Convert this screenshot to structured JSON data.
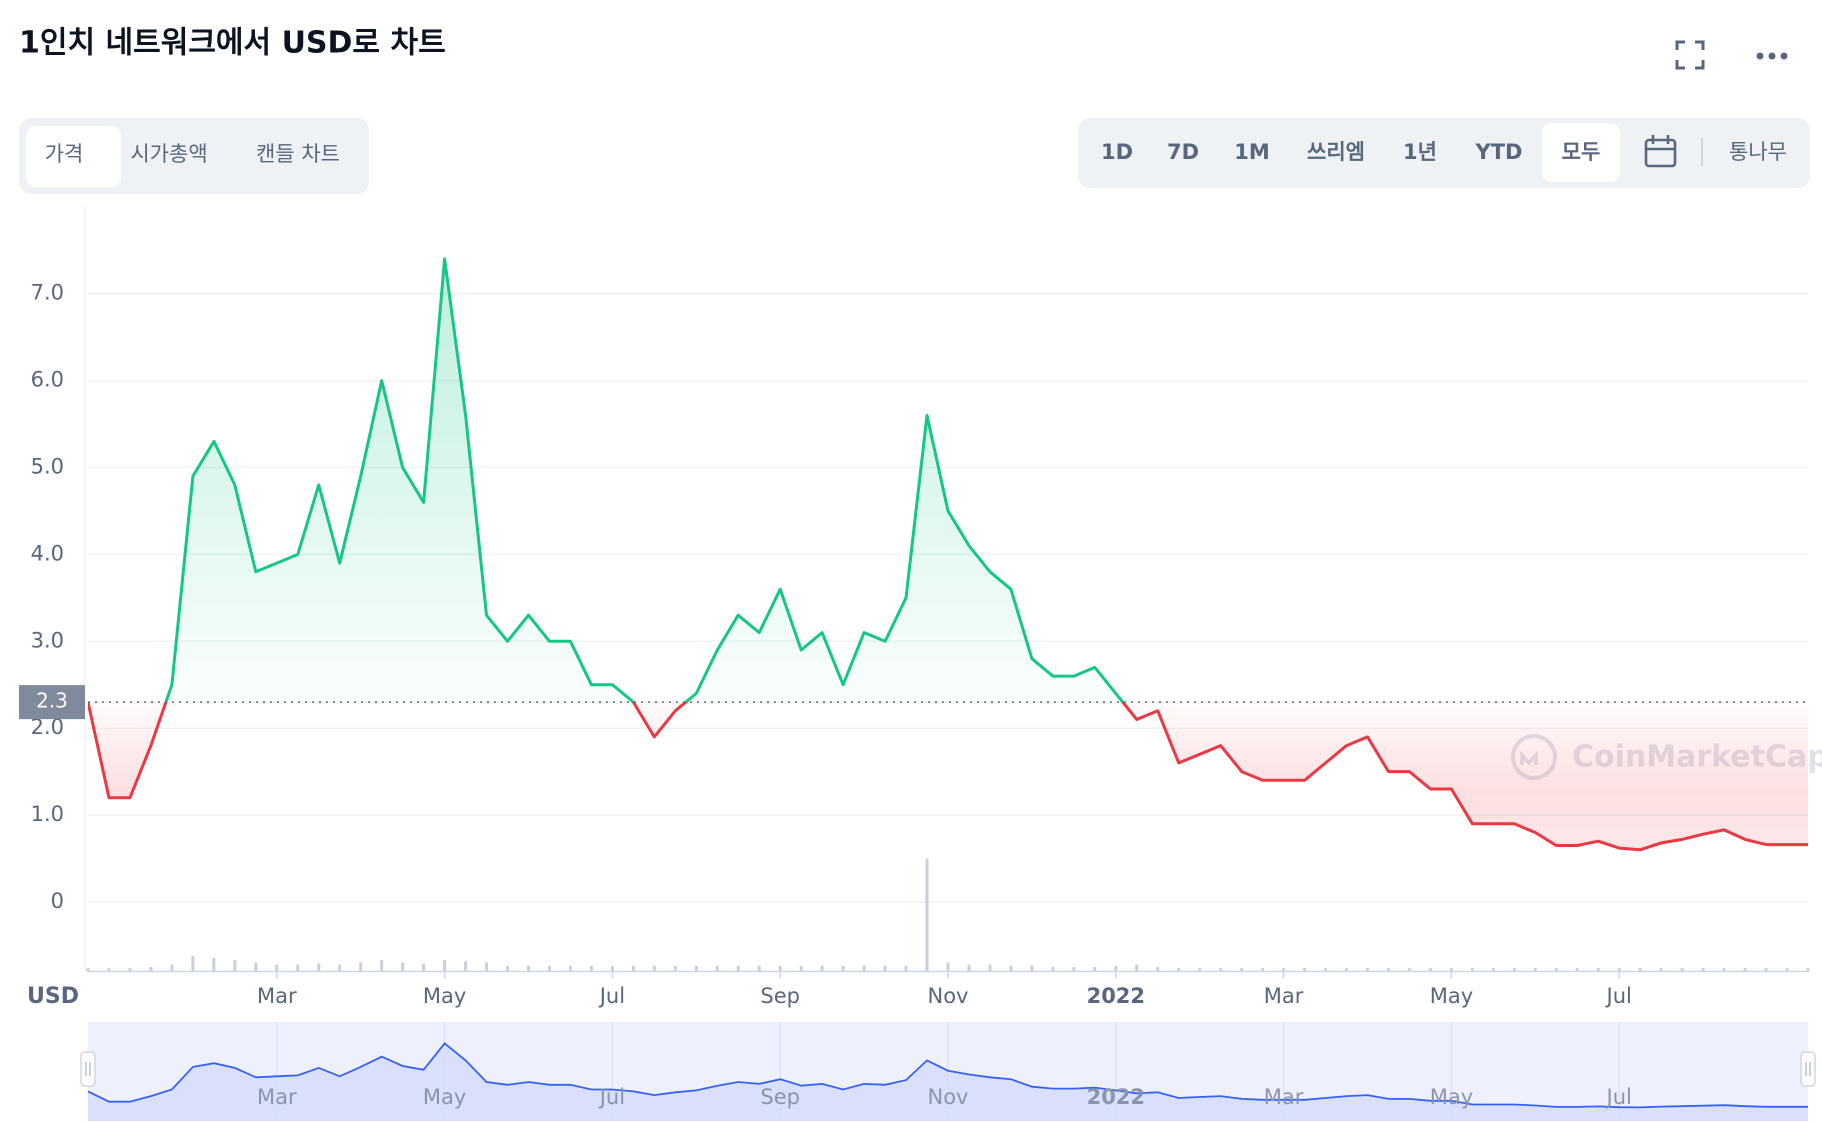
{
  "chart_data": {
    "type": "line",
    "title": "1인치 네트워크에서 USD로 차트",
    "toolbar": {
      "tabs": [
        "가격",
        "시가총액",
        "캔들 차트"
      ],
      "active_tab": 0,
      "ranges": [
        "1D",
        "7D",
        "1M",
        "쓰리엠",
        "1년",
        "YTD",
        "모두"
      ],
      "active_range": 6,
      "log_button": "통나무"
    },
    "currency_label": "USD",
    "watermark": "CoinMarketCap",
    "categories": [
      null,
      null,
      null,
      null,
      null,
      null,
      null,
      null,
      null,
      "Mar",
      null,
      null,
      null,
      null,
      null,
      null,
      null,
      "May",
      null,
      null,
      null,
      null,
      null,
      null,
      null,
      "Jul",
      null,
      null,
      null,
      null,
      null,
      null,
      null,
      "Sep",
      null,
      null,
      null,
      null,
      null,
      null,
      null,
      "Nov",
      null,
      null,
      null,
      null,
      null,
      null,
      null,
      "2022",
      null,
      null,
      null,
      null,
      null,
      null,
      null,
      "Mar",
      null,
      null,
      null,
      null,
      null,
      null,
      null,
      "May",
      null,
      null,
      null,
      null,
      null,
      null,
      null,
      "Jul",
      null,
      null,
      null,
      null,
      null,
      null,
      null,
      null,
      null
    ],
    "values": [
      2.3,
      1.2,
      1.2,
      1.8,
      2.5,
      4.9,
      5.3,
      4.8,
      3.8,
      3.9,
      4.0,
      4.8,
      3.9,
      4.9,
      6.0,
      5.0,
      4.6,
      7.4,
      5.6,
      3.3,
      3.0,
      3.3,
      3.0,
      3.0,
      2.5,
      2.5,
      2.3,
      1.9,
      2.2,
      2.4,
      2.9,
      3.3,
      3.1,
      3.6,
      2.9,
      3.1,
      2.5,
      3.1,
      3.0,
      3.5,
      5.6,
      4.5,
      4.1,
      3.8,
      3.6,
      2.8,
      2.6,
      2.6,
      2.7,
      2.4,
      2.1,
      2.2,
      1.6,
      1.7,
      1.8,
      1.5,
      1.4,
      1.4,
      1.4,
      1.6,
      1.8,
      1.9,
      1.5,
      1.5,
      1.3,
      1.3,
      0.9,
      0.9,
      0.9,
      0.8,
      0.65,
      0.65,
      0.7,
      0.62,
      0.6,
      0.68,
      0.72,
      0.78,
      0.83,
      0.72,
      0.66,
      0.66,
      0.66
    ],
    "volumes": [
      3,
      3,
      3,
      4,
      6,
      14,
      12,
      10,
      8,
      6,
      6,
      7,
      6,
      8,
      10,
      8,
      7,
      10,
      9,
      8,
      5,
      5,
      5,
      5,
      5,
      5,
      5,
      5,
      5,
      5,
      5,
      5,
      5,
      5,
      5,
      5,
      5,
      5,
      5,
      5,
      100,
      8,
      6,
      6,
      5,
      5,
      4,
      4,
      4,
      5,
      6,
      4,
      3,
      3,
      3,
      3,
      3,
      3,
      3,
      3,
      3,
      3,
      3,
      3,
      3,
      3,
      3,
      3,
      3,
      3,
      3,
      3,
      3,
      3,
      3,
      3,
      3,
      3,
      3,
      3,
      3,
      3,
      3
    ],
    "colors": {
      "up": "#16c784",
      "down": "#ea3943",
      "navigator": "#3861fb",
      "volume": "#c9d0da"
    },
    "reference": {
      "value": 2.3,
      "label": "2.3"
    },
    "ylim": [
      -0.8,
      7.9
    ],
    "yticks": [
      0,
      {
        "value": 1,
        "label": "1.0"
      },
      {
        "value": 2,
        "label": "2.0"
      },
      {
        "value": 3,
        "label": "3.0"
      },
      {
        "value": 4,
        "label": "4.0"
      },
      {
        "value": 5,
        "label": "5.0"
      },
      {
        "value": 6,
        "label": "6.0"
      },
      {
        "value": 7,
        "label": "7.0"
      }
    ],
    "grid": true
  }
}
